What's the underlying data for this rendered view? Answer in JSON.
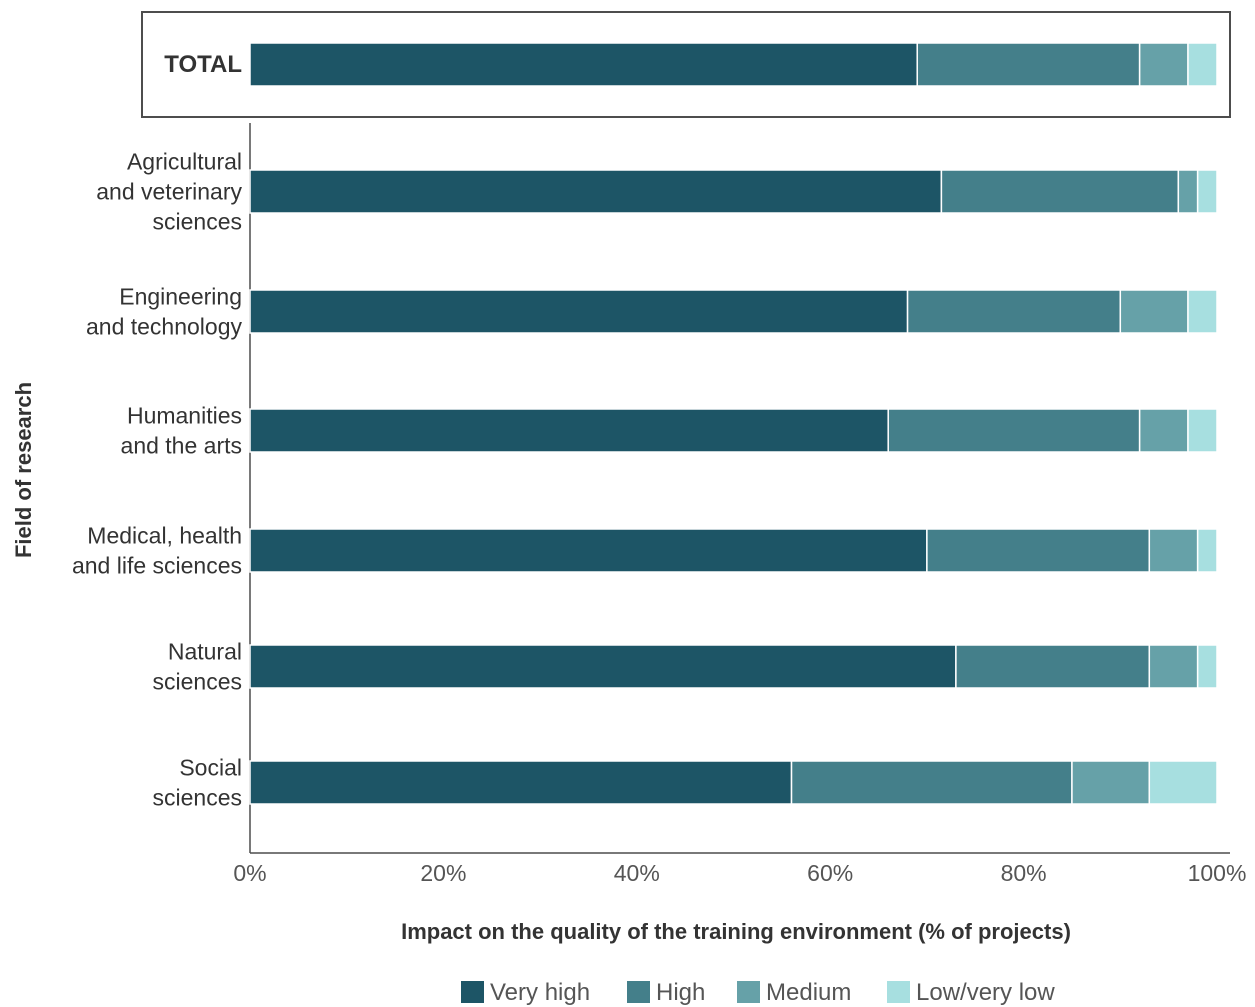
{
  "chart_data": {
    "type": "bar",
    "orientation": "horizontal",
    "stacked": true,
    "xlabel": "Impact on the quality of the training environment (% of projects)",
    "ylabel": "Field of research",
    "xlim": [
      0,
      100
    ],
    "x_ticks": [
      "0%",
      "20%",
      "40%",
      "60%",
      "80%",
      "100%"
    ],
    "total": {
      "label": "TOTAL",
      "values": [
        69,
        23,
        5,
        3
      ]
    },
    "categories": [
      [
        "Agricultural",
        "and veterinary",
        "sciences"
      ],
      [
        "Engineering",
        "and technology"
      ],
      [
        "Humanities",
        "and the arts"
      ],
      [
        "Medical, health",
        "and life sciences"
      ],
      [
        "Natural",
        "sciences"
      ],
      [
        "Social",
        "sciences"
      ]
    ],
    "series": [
      {
        "name": "Very high",
        "color": "#1d5566",
        "values": [
          71.5,
          68,
          66,
          70,
          73,
          56
        ]
      },
      {
        "name": "High",
        "color": "#447f8a",
        "values": [
          24.5,
          22,
          26,
          23,
          20,
          29
        ]
      },
      {
        "name": "Medium",
        "color": "#66a1a8",
        "values": [
          2,
          7,
          5,
          5,
          5,
          8
        ]
      },
      {
        "name": "Low/very low",
        "color": "#a7dfe0",
        "values": [
          2,
          3,
          3,
          2,
          2,
          7
        ]
      }
    ],
    "legend_position": "bottom",
    "grid": false
  }
}
